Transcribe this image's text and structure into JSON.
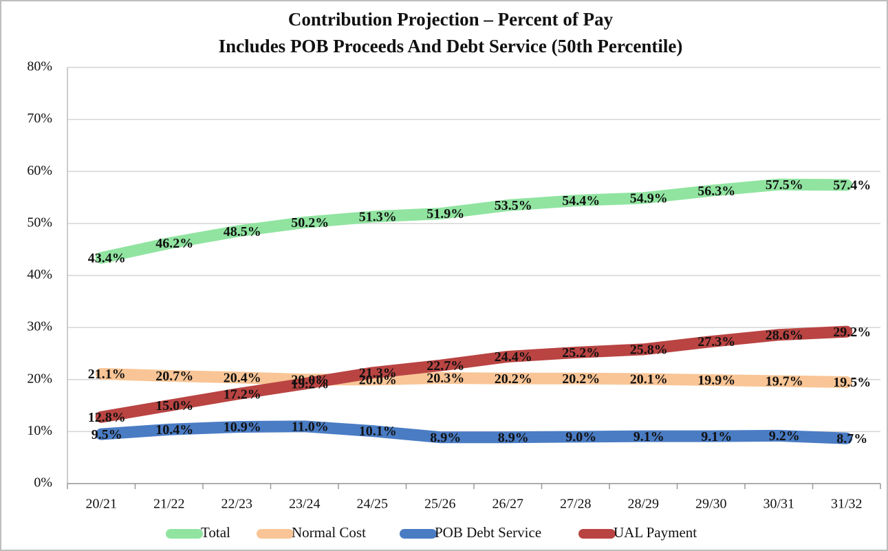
{
  "chart_data": {
    "type": "line",
    "title": "Contribution Projection – Percent of Pay",
    "subtitle": "Includes POB Proceeds And Debt Service (50th Percentile)",
    "categories": [
      "20/21",
      "21/22",
      "22/23",
      "23/24",
      "24/25",
      "25/26",
      "26/27",
      "27/28",
      "28/29",
      "29/30",
      "30/31",
      "31/32"
    ],
    "series": [
      {
        "name": "Total",
        "color": "#90e4a0",
        "values": [
          43.4,
          46.2,
          48.5,
          50.2,
          51.3,
          51.9,
          53.5,
          54.4,
          54.9,
          56.3,
          57.5,
          57.4
        ],
        "value_labels": [
          "43.4%",
          "46.2%",
          "48.5%",
          "50.2%",
          "51.3%",
          "51.9%",
          "53.5%",
          "54.4%",
          "54.9%",
          "56.3%",
          "57.5%",
          "57.4%"
        ]
      },
      {
        "name": "Normal Cost",
        "color": "#f9c596",
        "values": [
          21.1,
          20.7,
          20.4,
          20.0,
          20.0,
          20.3,
          20.2,
          20.2,
          20.1,
          19.9,
          19.7,
          19.5
        ],
        "value_labels": [
          "21.1%",
          "20.7%",
          "20.4%",
          "20.0%",
          "20.0%",
          "20.3%",
          "20.2%",
          "20.2%",
          "20.1%",
          "19.9%",
          "19.7%",
          "19.5%"
        ]
      },
      {
        "name": "POB Debt Service",
        "color": "#4a7cc4",
        "values": [
          9.5,
          10.4,
          10.9,
          11.0,
          10.1,
          8.9,
          8.9,
          9.0,
          9.1,
          9.1,
          9.2,
          8.7
        ],
        "value_labels": [
          "9.5%",
          "10.4%",
          "10.9%",
          "11.0%",
          "10.1%",
          "8.9%",
          "8.9%",
          "9.0%",
          "9.1%",
          "9.1%",
          "9.2%",
          "8.7%"
        ]
      },
      {
        "name": "UAL Payment",
        "color": "#b94442",
        "values": [
          12.8,
          15.0,
          17.2,
          19.2,
          21.3,
          22.7,
          24.4,
          25.2,
          25.8,
          27.3,
          28.6,
          29.2
        ],
        "value_labels": [
          "12.8%",
          "15.0%",
          "17.2%",
          "19.2%",
          "21.3%",
          "22.7%",
          "24.4%",
          "25.2%",
          "25.8%",
          "27.3%",
          "28.6%",
          "29.2%"
        ]
      }
    ],
    "ylim": [
      0,
      80
    ],
    "yticks": [
      {
        "value": 0,
        "label": "0%"
      },
      {
        "value": 10,
        "label": "10%"
      },
      {
        "value": 20,
        "label": "20%"
      },
      {
        "value": 30,
        "label": "30%"
      },
      {
        "value": 40,
        "label": "40%"
      },
      {
        "value": 50,
        "label": "50%"
      },
      {
        "value": 60,
        "label": "60%"
      },
      {
        "value": 70,
        "label": "70%"
      },
      {
        "value": 80,
        "label": "80%"
      }
    ],
    "grid": true,
    "legend": "bottom"
  }
}
